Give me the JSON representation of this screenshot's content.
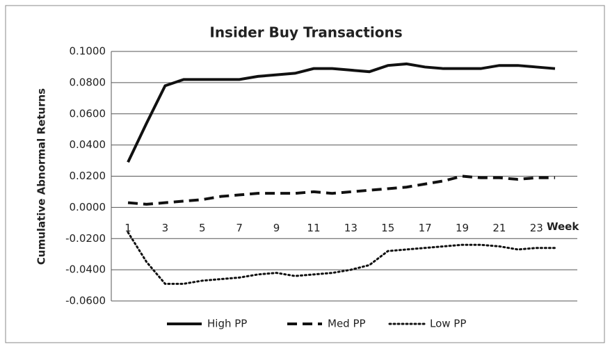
{
  "chart_data": {
    "type": "line",
    "title": "Insider Buy Transactions",
    "y_label": "Cumulative Abnormal Returns",
    "x_label": "Week",
    "x": [
      1,
      2,
      3,
      4,
      5,
      6,
      7,
      8,
      9,
      10,
      11,
      12,
      13,
      14,
      15,
      16,
      17,
      18,
      19,
      20,
      21,
      22,
      23,
      24
    ],
    "series": [
      {
        "name": "High PP",
        "color": "#111111",
        "dash": "solid",
        "values": [
          0.029,
          0.054,
          0.078,
          0.082,
          0.082,
          0.082,
          0.082,
          0.084,
          0.085,
          0.086,
          0.089,
          0.089,
          0.088,
          0.087,
          0.091,
          0.092,
          0.09,
          0.089,
          0.089,
          0.089,
          0.091,
          0.091,
          0.09,
          0.089
        ]
      },
      {
        "name": "Med PP",
        "color": "#111111",
        "dash": "dashed",
        "values": [
          0.003,
          0.002,
          0.003,
          0.004,
          0.005,
          0.007,
          0.008,
          0.009,
          0.009,
          0.009,
          0.01,
          0.009,
          0.01,
          0.011,
          0.012,
          0.013,
          0.015,
          0.017,
          0.02,
          0.019,
          0.019,
          0.018,
          0.019,
          0.019
        ]
      },
      {
        "name": "Low PP",
        "color": "#111111",
        "dash": "dotted",
        "values": [
          -0.016,
          -0.035,
          -0.049,
          -0.049,
          -0.047,
          -0.046,
          -0.045,
          -0.043,
          -0.042,
          -0.044,
          -0.043,
          -0.042,
          -0.04,
          -0.037,
          -0.028,
          -0.027,
          -0.026,
          -0.025,
          -0.024,
          -0.024,
          -0.025,
          -0.027,
          -0.026,
          -0.026
        ]
      }
    ],
    "xlim": [
      0.1,
      25.2
    ],
    "xticks": [
      1,
      3,
      5,
      7,
      9,
      11,
      13,
      15,
      17,
      19,
      21,
      23
    ],
    "ylim": [
      -0.06,
      0.1
    ],
    "yticks": [
      {
        "value": -0.06,
        "label": "-0.0600"
      },
      {
        "value": -0.04,
        "label": "-0.0400"
      },
      {
        "value": -0.02,
        "label": "-0.0200"
      },
      {
        "value": 0,
        "label": "0.0000"
      },
      {
        "value": 0.02,
        "label": "0.0200"
      },
      {
        "value": 0.04,
        "label": "0.0400"
      },
      {
        "value": 0.06,
        "label": "0.0600"
      },
      {
        "value": 0.08,
        "label": "0.0800"
      },
      {
        "value": 0.1,
        "label": "0.1000"
      }
    ],
    "grid": true,
    "legend": "bottom"
  }
}
